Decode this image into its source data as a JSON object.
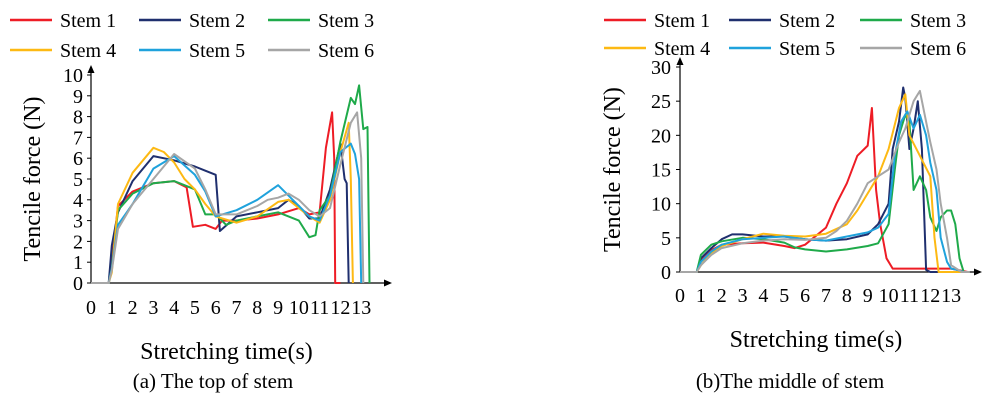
{
  "figure": {
    "panels": [
      {
        "caption": "(a) The top of stem"
      },
      {
        "caption": "(b)The middle of stem"
      }
    ]
  },
  "chart_data": [
    {
      "type": "line",
      "caption": "(a) The top of stem",
      "xlabel": "Stretching time(s)",
      "ylabel": "Tencile force (N)",
      "xlim": [
        0,
        14
      ],
      "ylim": [
        0,
        10
      ],
      "xticks": [
        "0",
        "1",
        "2",
        "3",
        "4",
        "5",
        "6",
        "7",
        "8",
        "9",
        "10",
        "11",
        "12",
        "13"
      ],
      "yticks": [
        "0",
        "1",
        "2",
        "3",
        "4",
        "5",
        "6",
        "7",
        "8",
        "9",
        "10"
      ],
      "legend_position": "top",
      "grid": false,
      "series": [
        {
          "name": "Stem 1",
          "color": "#ee1c25",
          "x": [
            0,
            0.85,
            1.0,
            1.3,
            2,
            3,
            4,
            4.6,
            4.9,
            5.5,
            6.0,
            6.3,
            7,
            8,
            9,
            10,
            10.5,
            11,
            11.3,
            11.6,
            11.7,
            11.75,
            11.8,
            12
          ],
          "y": [
            0,
            0,
            1.0,
            3.7,
            4.4,
            4.8,
            4.9,
            4.6,
            2.7,
            2.8,
            2.6,
            3.0,
            3.0,
            3.1,
            3.3,
            3.6,
            3.3,
            3.4,
            6.5,
            8.2,
            6.0,
            0,
            0,
            0
          ]
        },
        {
          "name": "Stem 2",
          "color": "#1f2f6e",
          "x": [
            0,
            0.85,
            1.0,
            1.3,
            2,
            3,
            4,
            5,
            5.5,
            6.0,
            6.2,
            7,
            8,
            9,
            9.5,
            10,
            10.5,
            11,
            11.5,
            12,
            12.2,
            12.3,
            12.4
          ],
          "y": [
            0,
            0,
            1.8,
            3.4,
            4.9,
            6.1,
            5.9,
            5.6,
            5.4,
            5.2,
            2.5,
            3.2,
            3.4,
            3.6,
            4.0,
            3.7,
            3.1,
            3.1,
            4.5,
            6.7,
            5.0,
            4.8,
            0
          ]
        },
        {
          "name": "Stem 3",
          "color": "#1faa4a",
          "x": [
            0,
            0.85,
            1.0,
            1.3,
            2,
            3,
            4,
            4.5,
            5,
            5.5,
            6,
            6.5,
            7,
            8,
            9,
            10,
            10.5,
            10.8,
            11,
            11.5,
            12,
            12.5,
            12.7,
            12.9,
            13.1,
            13.3,
            13.4
          ],
          "y": [
            0,
            0,
            0.7,
            3.5,
            4.3,
            4.8,
            4.9,
            4.7,
            4.5,
            3.3,
            3.3,
            2.8,
            3.0,
            3.2,
            3.4,
            3.0,
            2.2,
            2.3,
            3.5,
            4.2,
            6.8,
            8.9,
            8.6,
            9.5,
            7.4,
            7.5,
            0
          ]
        },
        {
          "name": "Stem 4",
          "color": "#fdb913",
          "x": [
            0,
            0.85,
            1.0,
            1.3,
            2,
            3,
            3.5,
            4,
            4.5,
            5,
            5.5,
            6,
            7,
            8,
            9,
            9.5,
            10,
            10.5,
            11,
            11.5,
            12,
            12.4,
            12.5,
            12.6
          ],
          "y": [
            0,
            0,
            0.5,
            3.8,
            5.3,
            6.5,
            6.3,
            5.8,
            5.0,
            4.5,
            3.8,
            3.2,
            2.9,
            3.2,
            3.9,
            4.0,
            3.6,
            3.2,
            2.9,
            4.0,
            6.3,
            7.7,
            5.0,
            0
          ]
        },
        {
          "name": "Stem 5",
          "color": "#1fa2dc",
          "x": [
            0,
            0.85,
            1.0,
            1.3,
            2,
            3,
            4,
            5,
            5.5,
            6,
            7,
            8,
            9,
            9.5,
            10,
            10.5,
            11,
            11.5,
            12,
            12.5,
            12.7,
            12.9,
            13.0
          ],
          "y": [
            0,
            0,
            0.7,
            2.8,
            3.8,
            5.5,
            6.1,
            5.2,
            4.4,
            3.2,
            3.5,
            4.0,
            4.7,
            4.2,
            3.7,
            3.2,
            3.0,
            4.2,
            6.3,
            6.7,
            6.2,
            5.0,
            0
          ]
        },
        {
          "name": "Stem 6",
          "color": "#a6a6a6",
          "x": [
            0,
            0.85,
            1.0,
            1.3,
            2,
            3,
            4,
            5,
            5.5,
            6,
            7,
            8,
            8.5,
            9,
            9.5,
            10,
            10.5,
            11,
            11.5,
            12,
            12.5,
            12.8,
            13.0,
            13.1
          ],
          "y": [
            0,
            0,
            0.6,
            2.6,
            3.8,
            5.0,
            6.2,
            5.5,
            4.5,
            3.3,
            3.3,
            3.7,
            4.0,
            4.1,
            4.3,
            4.0,
            3.5,
            3.2,
            3.6,
            5.7,
            7.7,
            8.2,
            6.0,
            0
          ]
        }
      ]
    },
    {
      "type": "line",
      "caption": "(b)The middle of stem",
      "xlabel": "Stretching time(s)",
      "ylabel": "Tencile  force  (N)",
      "xlim": [
        0,
        14
      ],
      "ylim": [
        0,
        30
      ],
      "xticks": [
        "0",
        "1",
        "2",
        "3",
        "4",
        "5",
        "6",
        "7",
        "8",
        "9",
        "10",
        "11",
        "12",
        "13"
      ],
      "yticks": [
        "0",
        "5",
        "10",
        "15",
        "20",
        "25",
        "30"
      ],
      "legend_position": "top",
      "grid": false,
      "series": [
        {
          "name": "Stem 1",
          "color": "#ee1c25",
          "x": [
            0,
            0.8,
            1.0,
            1.5,
            2,
            3,
            4,
            5,
            5.5,
            6,
            7,
            7.5,
            8,
            8.5,
            9,
            9.2,
            9.4,
            9.6,
            9.9,
            10.2,
            10.5,
            11,
            12,
            13,
            13.8
          ],
          "y": [
            0,
            0,
            1.8,
            3.2,
            4.0,
            4.2,
            4.3,
            3.8,
            3.5,
            4.0,
            6.5,
            10.0,
            13.0,
            17.0,
            18.5,
            24.0,
            12.0,
            7.0,
            2.0,
            0.5,
            0.5,
            0.5,
            0.5,
            0.5,
            0
          ]
        },
        {
          "name": "Stem 2",
          "color": "#1f2f6e",
          "x": [
            0,
            0.8,
            1.0,
            1.5,
            2,
            2.5,
            3,
            4,
            5,
            6,
            7,
            8,
            9,
            9.5,
            10,
            10.2,
            10.5,
            10.7,
            10.8,
            11,
            11.2,
            11.4,
            11.6,
            11.8,
            12,
            13,
            13.8
          ],
          "y": [
            0,
            0,
            2.0,
            3.5,
            4.8,
            5.5,
            5.5,
            5.2,
            5.2,
            4.8,
            4.6,
            4.8,
            5.5,
            7.0,
            10.0,
            18.0,
            22.0,
            27.0,
            25.5,
            18.0,
            21.0,
            25.0,
            18.0,
            0.3,
            0,
            0,
            0
          ]
        },
        {
          "name": "Stem 3",
          "color": "#1faa4a",
          "x": [
            0,
            0.8,
            1.0,
            1.5,
            2,
            3,
            4,
            5,
            5.5,
            6,
            7,
            8,
            9,
            9.5,
            10,
            10.3,
            10.5,
            10.8,
            11,
            11.2,
            11.5,
            11.8,
            12,
            12.3,
            12.5,
            12.8,
            13,
            13.2,
            13.4,
            13.6,
            13.9
          ],
          "y": [
            0,
            0,
            2.5,
            4.0,
            4.5,
            5.0,
            4.8,
            4.3,
            3.6,
            3.3,
            3.0,
            3.3,
            3.8,
            4.2,
            7.0,
            15.0,
            20.0,
            23.0,
            22.0,
            12.0,
            14.0,
            12.0,
            8.0,
            6.0,
            8.0,
            9.0,
            9.0,
            7.0,
            2.0,
            0,
            0
          ]
        },
        {
          "name": "Stem 4",
          "color": "#fdb913",
          "x": [
            0,
            0.8,
            1.0,
            1.5,
            2,
            3,
            4,
            5,
            6,
            7,
            8,
            8.5,
            9,
            9.5,
            10,
            10.5,
            10.8,
            11,
            11.5,
            12,
            12.2,
            12.4,
            12.6,
            13,
            13.8
          ],
          "y": [
            0,
            0,
            1.0,
            2.8,
            3.8,
            4.8,
            5.6,
            5.3,
            5.2,
            5.6,
            7.0,
            9.0,
            11.5,
            14.0,
            18.0,
            24.0,
            26.0,
            20.0,
            17.0,
            14.0,
            5.0,
            0,
            0,
            0,
            0
          ]
        },
        {
          "name": "Stem 5",
          "color": "#1fa2dc",
          "x": [
            0,
            0.8,
            1.0,
            1.5,
            2,
            3,
            4,
            5,
            6,
            7,
            8,
            9,
            9.5,
            10,
            10.3,
            10.6,
            10.9,
            11.2,
            11.5,
            11.8,
            12,
            12.3,
            12.5,
            12.8,
            13,
            13.3,
            13.6
          ],
          "y": [
            0,
            0,
            1.5,
            3.0,
            4.0,
            4.8,
            5.0,
            5.2,
            4.8,
            4.6,
            5.2,
            5.8,
            6.5,
            8.5,
            17.0,
            22.0,
            23.5,
            21.0,
            23.0,
            20.0,
            16.0,
            12.0,
            5.0,
            1.5,
            0.5,
            0.3,
            0
          ]
        },
        {
          "name": "Stem 6",
          "color": "#a6a6a6",
          "x": [
            0,
            0.8,
            1.0,
            1.5,
            2,
            3,
            4,
            5,
            6,
            7,
            7.5,
            8,
            8.5,
            9,
            9.5,
            10,
            10.5,
            10.8,
            11,
            11.2,
            11.5,
            11.8,
            12,
            12.3,
            12.5,
            12.8,
            13,
            13.5,
            13.9
          ],
          "y": [
            0,
            0,
            1.0,
            2.5,
            3.5,
            4.2,
            4.6,
            4.8,
            4.7,
            5.0,
            6.0,
            7.5,
            10.0,
            13.0,
            14.0,
            15.0,
            19.0,
            21.0,
            23.0,
            25.0,
            26.5,
            22.0,
            19.0,
            15.0,
            10.0,
            5.0,
            1.0,
            0,
            0
          ]
        }
      ]
    }
  ]
}
